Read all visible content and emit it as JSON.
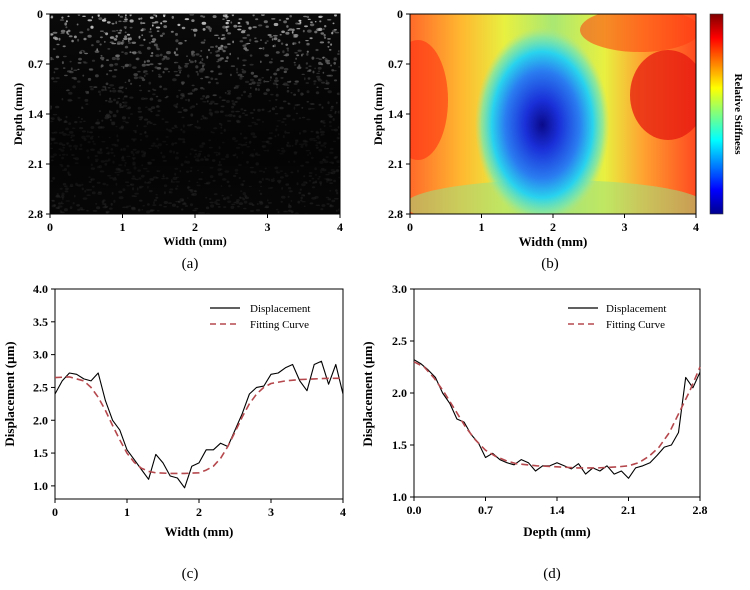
{
  "figure": {
    "colors": {
      "axis": "#000000",
      "fit_curve": "#b5484d",
      "displacement_line": "#000000",
      "speckle_bg": "#0a0a0a",
      "speckle_dot": "#d8d8d8"
    }
  },
  "chart_data": [
    {
      "id": "a",
      "type": "heatmap",
      "subtitle": "(a)",
      "xlabel": "Width (mm)",
      "ylabel": "Depth (mm)",
      "xlim": [
        0,
        4
      ],
      "ylim": [
        0,
        2.8
      ],
      "y_inverted": true,
      "xticks": [
        "0",
        "1",
        "2",
        "3",
        "4"
      ],
      "yticks": [
        "0",
        "0.7",
        "1.4",
        "2.1",
        "2.8"
      ],
      "description_kind": "grayscale speckle image"
    },
    {
      "id": "b",
      "type": "heatmap",
      "subtitle": "(b)",
      "xlabel": "Width (mm)",
      "ylabel": "Depth (mm)",
      "xlim": [
        0,
        4
      ],
      "ylim": [
        0,
        2.8
      ],
      "y_inverted": true,
      "xticks": [
        "0",
        "1",
        "2",
        "3",
        "4"
      ],
      "yticks": [
        "0",
        "0.7",
        "1.4",
        "2.1",
        "2.8"
      ],
      "colorbar_label": "Relative Stiffness",
      "colormap": "jet",
      "soft_region": {
        "center_x": 1.85,
        "center_y": 1.55,
        "radius_x": 0.65,
        "radius_y": 1.05
      }
    },
    {
      "id": "c",
      "type": "line",
      "subtitle": "(c)",
      "xlabel": "Width (mm)",
      "ylabel": "Displacement (μm)",
      "xlim": [
        0,
        4
      ],
      "ylim": [
        0.8,
        4.0
      ],
      "xticks": [
        "0",
        "1",
        "2",
        "3",
        "4"
      ],
      "yticks": [
        "1.0",
        "1.5",
        "2.0",
        "2.5",
        "3.0",
        "3.5",
        "4.0"
      ],
      "legend": [
        "Displacement",
        "Fitting Curve"
      ],
      "series": [
        {
          "name": "Displacement",
          "style": "solid",
          "x": [
            0,
            0.1,
            0.2,
            0.3,
            0.4,
            0.5,
            0.6,
            0.7,
            0.8,
            0.9,
            1.0,
            1.1,
            1.2,
            1.3,
            1.4,
            1.5,
            1.6,
            1.7,
            1.8,
            1.9,
            2.0,
            2.1,
            2.2,
            2.3,
            2.4,
            2.5,
            2.6,
            2.7,
            2.8,
            2.9,
            3.0,
            3.1,
            3.2,
            3.3,
            3.4,
            3.5,
            3.6,
            3.7,
            3.8,
            3.9,
            4.0
          ],
          "y": [
            2.4,
            2.6,
            2.72,
            2.7,
            2.63,
            2.6,
            2.72,
            2.3,
            2.0,
            1.85,
            1.55,
            1.4,
            1.25,
            1.1,
            1.48,
            1.35,
            1.15,
            1.12,
            0.97,
            1.3,
            1.35,
            1.55,
            1.55,
            1.65,
            1.6,
            1.85,
            2.1,
            2.4,
            2.5,
            2.52,
            2.7,
            2.72,
            2.8,
            2.85,
            2.6,
            2.45,
            2.85,
            2.9,
            2.55,
            2.85,
            2.4
          ]
        },
        {
          "name": "Fitting Curve",
          "style": "dashed",
          "x": [
            0,
            0.2,
            0.4,
            0.5,
            0.6,
            0.7,
            0.8,
            0.9,
            1.0,
            1.1,
            1.2,
            1.3,
            1.4,
            1.6,
            1.8,
            2.0,
            2.1,
            2.2,
            2.3,
            2.4,
            2.5,
            2.6,
            2.7,
            2.8,
            2.9,
            3.0,
            3.2,
            3.4,
            3.6,
            3.8,
            4.0
          ],
          "y": [
            2.65,
            2.66,
            2.6,
            2.5,
            2.35,
            2.15,
            1.92,
            1.7,
            1.5,
            1.36,
            1.27,
            1.22,
            1.2,
            1.19,
            1.19,
            1.2,
            1.24,
            1.3,
            1.42,
            1.6,
            1.82,
            2.05,
            2.25,
            2.4,
            2.5,
            2.56,
            2.6,
            2.62,
            2.63,
            2.64,
            2.64
          ]
        }
      ]
    },
    {
      "id": "d",
      "type": "line",
      "subtitle": "(d)",
      "xlabel": "Depth (mm)",
      "ylabel": "Displacement (μm)",
      "xlim": [
        0,
        2.8
      ],
      "ylim": [
        1.0,
        3.0
      ],
      "xticks": [
        "0.0",
        "0.7",
        "1.4",
        "2.1",
        "2.8"
      ],
      "yticks": [
        "1.0",
        "1.5",
        "2.0",
        "2.5",
        "3.0"
      ],
      "legend": [
        "Displacement",
        "Fitting Curve"
      ],
      "series": [
        {
          "name": "Displacement",
          "style": "solid",
          "x": [
            0,
            0.07,
            0.14,
            0.21,
            0.28,
            0.35,
            0.42,
            0.49,
            0.56,
            0.63,
            0.7,
            0.77,
            0.84,
            0.91,
            0.98,
            1.05,
            1.12,
            1.19,
            1.26,
            1.33,
            1.4,
            1.47,
            1.54,
            1.61,
            1.68,
            1.75,
            1.82,
            1.89,
            1.96,
            2.03,
            2.1,
            2.17,
            2.24,
            2.31,
            2.38,
            2.45,
            2.52,
            2.59,
            2.66,
            2.73,
            2.8
          ],
          "y": [
            2.32,
            2.28,
            2.22,
            2.15,
            2.0,
            1.9,
            1.75,
            1.72,
            1.6,
            1.52,
            1.38,
            1.42,
            1.36,
            1.33,
            1.31,
            1.36,
            1.33,
            1.25,
            1.3,
            1.3,
            1.33,
            1.3,
            1.27,
            1.32,
            1.22,
            1.28,
            1.25,
            1.3,
            1.22,
            1.25,
            1.18,
            1.28,
            1.3,
            1.33,
            1.4,
            1.48,
            1.5,
            1.62,
            2.15,
            2.05,
            2.2
          ]
        },
        {
          "name": "Fitting Curve",
          "style": "dashed",
          "x": [
            0,
            0.1,
            0.2,
            0.3,
            0.4,
            0.5,
            0.6,
            0.7,
            0.8,
            0.9,
            1.0,
            1.2,
            1.4,
            1.6,
            1.8,
            2.0,
            2.1,
            2.2,
            2.3,
            2.4,
            2.5,
            2.6,
            2.7,
            2.8
          ],
          "y": [
            2.3,
            2.25,
            2.14,
            2.0,
            1.84,
            1.68,
            1.55,
            1.45,
            1.39,
            1.35,
            1.32,
            1.3,
            1.29,
            1.28,
            1.28,
            1.29,
            1.3,
            1.33,
            1.39,
            1.48,
            1.62,
            1.82,
            2.02,
            2.25
          ]
        }
      ]
    }
  ]
}
